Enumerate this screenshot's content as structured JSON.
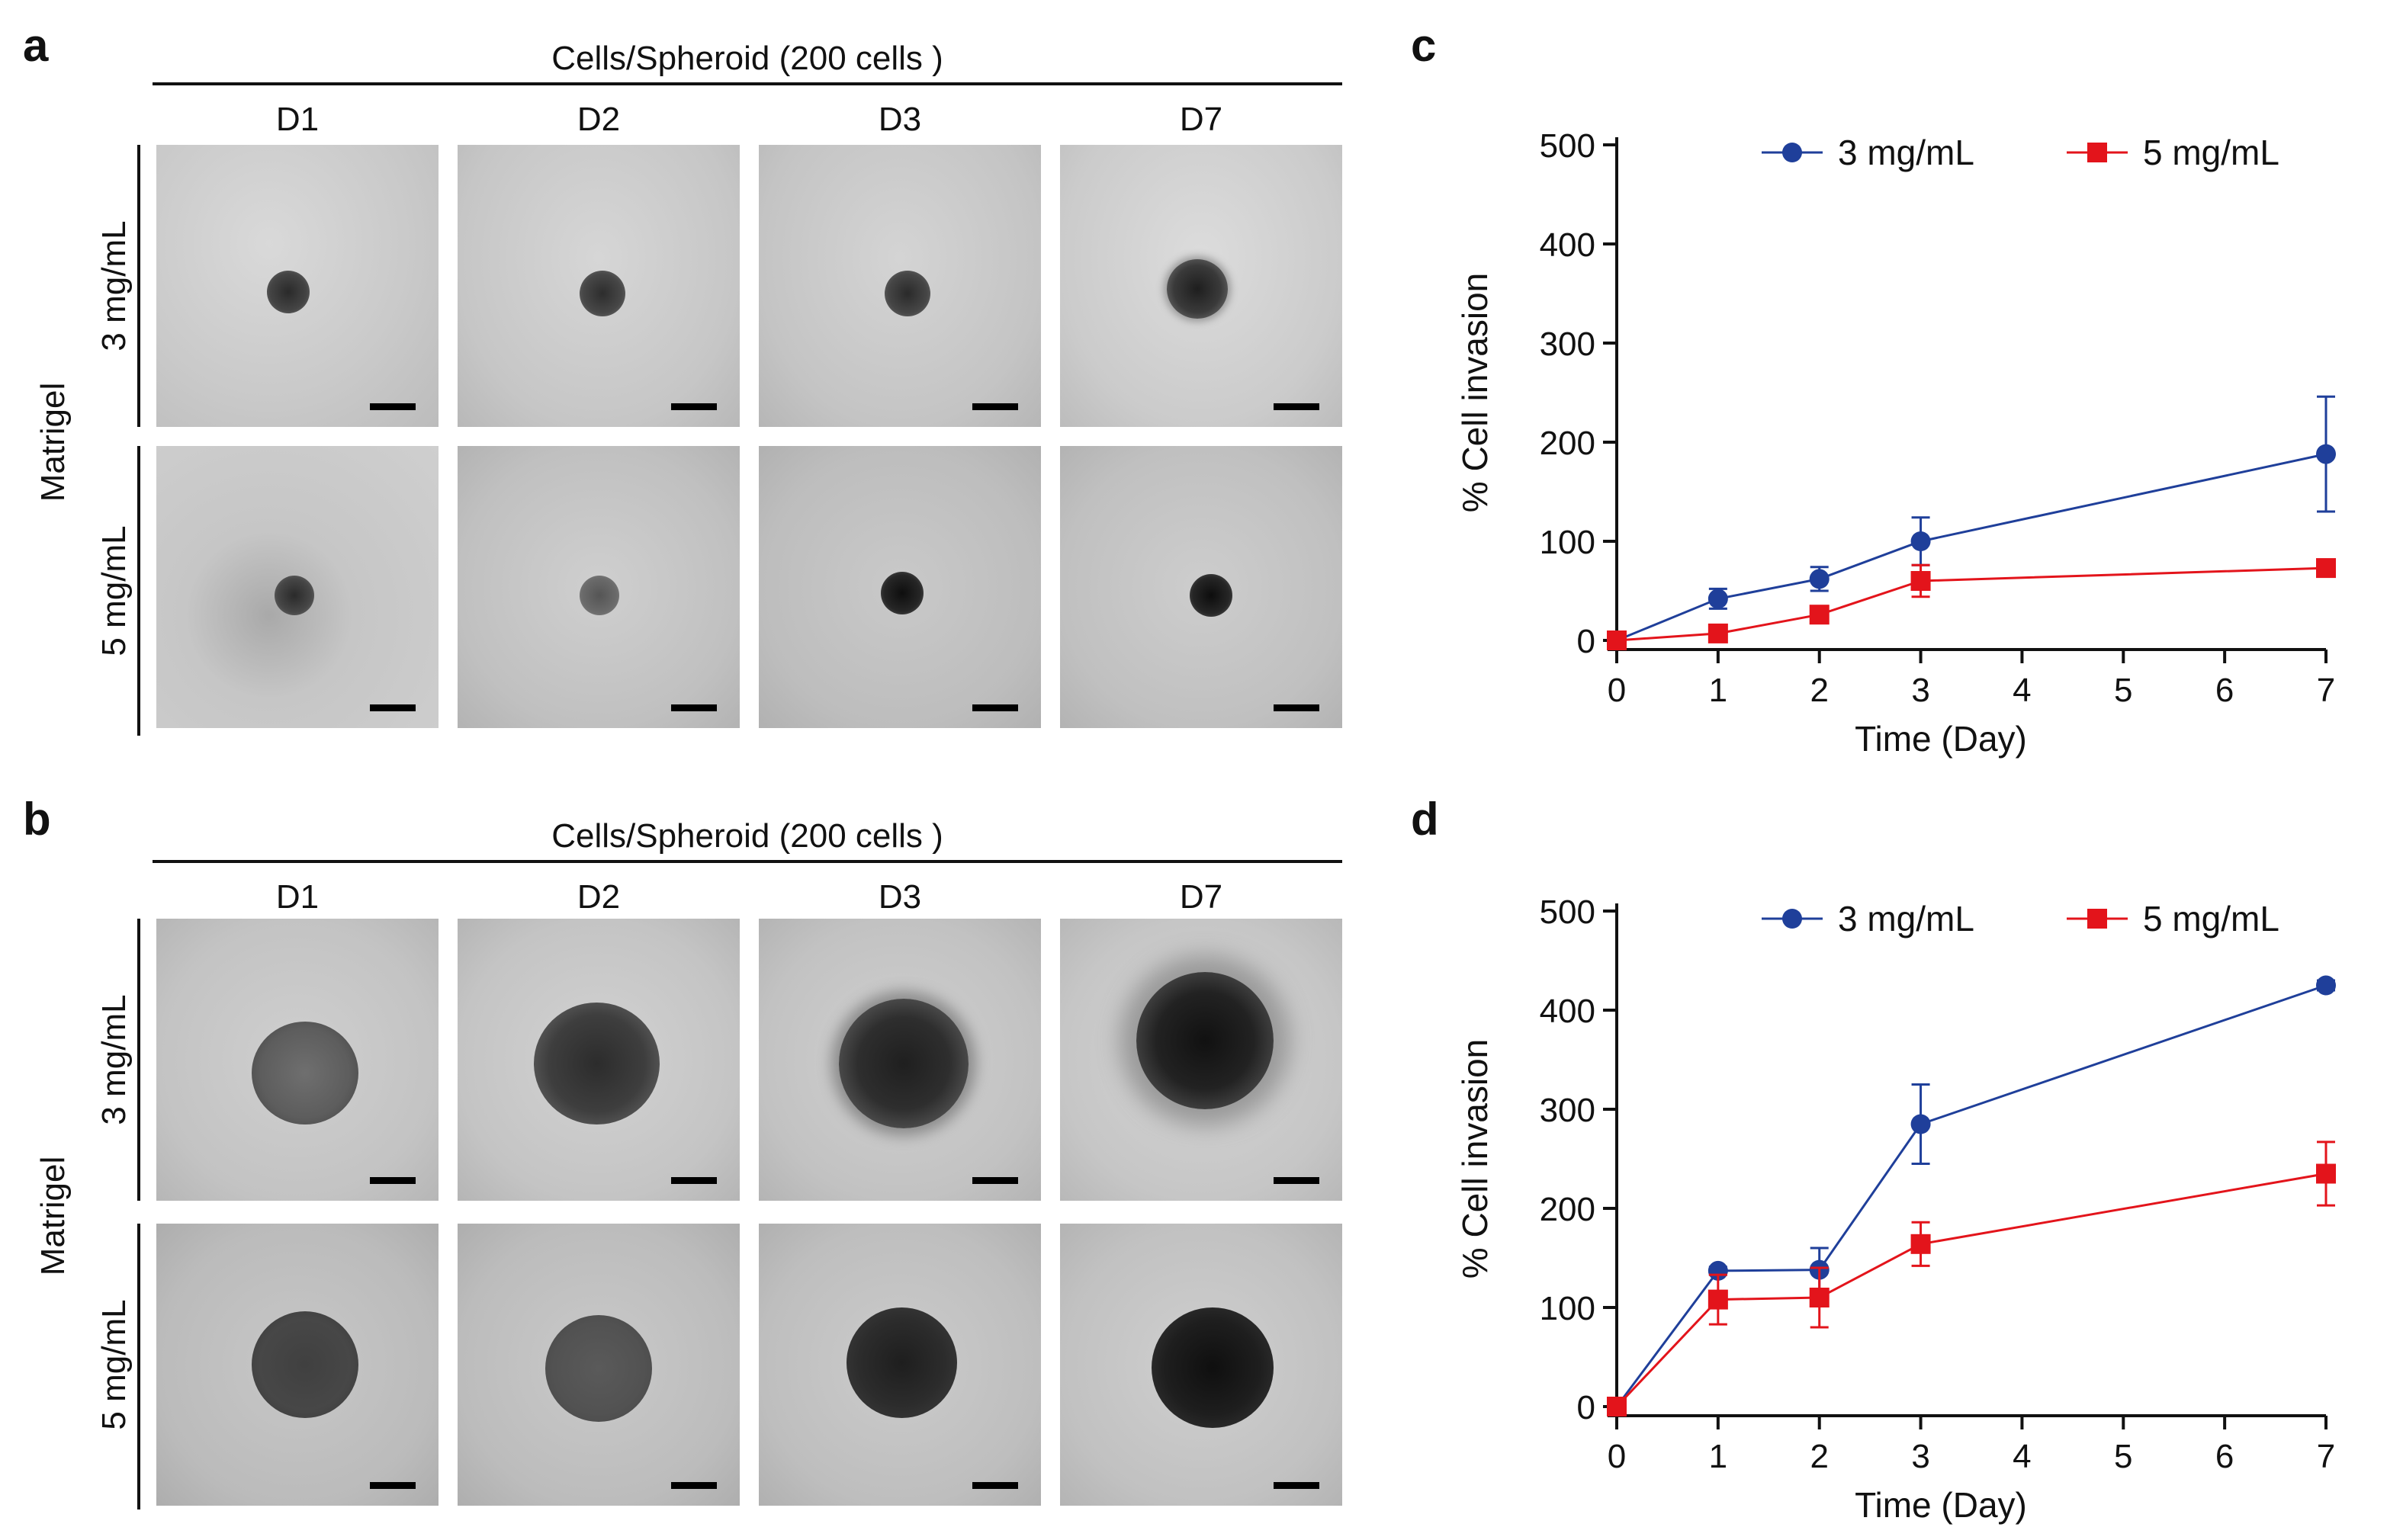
{
  "panels": {
    "a": {
      "letter": "a",
      "header": "Cells/Spheroid (200 cells )",
      "days": [
        "D1",
        "D2",
        "D3",
        "D7"
      ],
      "row_labels": [
        "3 mg/mL",
        "5 mg/mL"
      ],
      "group_label": "Matrigel"
    },
    "b": {
      "letter": "b",
      "header": "Cells/Spheroid (200 cells )",
      "days": [
        "D1",
        "D2",
        "D3",
        "D7"
      ],
      "row_labels": [
        "3 mg/mL",
        "5 mg/mL"
      ],
      "group_label": "Matrigel"
    },
    "c": {
      "letter": "c"
    },
    "d": {
      "letter": "d"
    }
  },
  "colors": {
    "series_3": "#1f3f9a",
    "series_5": "#e3141b"
  },
  "chart_data": [
    {
      "type": "line",
      "panel": "c",
      "title": "",
      "xlabel": "Time (Day)",
      "ylabel": "% Cell invasion",
      "x": [
        0,
        1,
        2,
        3,
        7
      ],
      "xlim": [
        0,
        7
      ],
      "ylim": [
        0,
        500
      ],
      "xticks": [
        0,
        1,
        2,
        3,
        4,
        5,
        6,
        7
      ],
      "yticks": [
        0,
        100,
        200,
        300,
        400,
        500
      ],
      "legend_position": "top",
      "series": [
        {
          "name": "3 mg/mL",
          "marker": "circle",
          "color": "#1f3f9a",
          "values": [
            0,
            42,
            62,
            100,
            188
          ],
          "errors": [
            0,
            10,
            12,
            24,
            58
          ]
        },
        {
          "name": "5 mg/mL",
          "marker": "square",
          "color": "#e3141b",
          "values": [
            0,
            7,
            26,
            60,
            73
          ],
          "errors": [
            0,
            3,
            5,
            16,
            6
          ]
        }
      ]
    },
    {
      "type": "line",
      "panel": "d",
      "title": "",
      "xlabel": "Time (Day)",
      "ylabel": "% Cell invasion",
      "x": [
        0,
        1,
        2,
        3,
        7
      ],
      "xlim": [
        0,
        7
      ],
      "ylim": [
        0,
        500
      ],
      "xticks": [
        0,
        1,
        2,
        3,
        4,
        5,
        6,
        7
      ],
      "yticks": [
        0,
        100,
        200,
        300,
        400,
        500
      ],
      "legend_position": "top",
      "series": [
        {
          "name": "3 mg/mL",
          "marker": "circle",
          "color": "#1f3f9a",
          "values": [
            0,
            137,
            138,
            285,
            425
          ],
          "errors": [
            0,
            4,
            22,
            40,
            5
          ]
        },
        {
          "name": "5 mg/mL",
          "marker": "square",
          "color": "#e3141b",
          "values": [
            0,
            108,
            110,
            164,
            235
          ],
          "errors": [
            0,
            25,
            30,
            22,
            32
          ]
        }
      ]
    }
  ]
}
